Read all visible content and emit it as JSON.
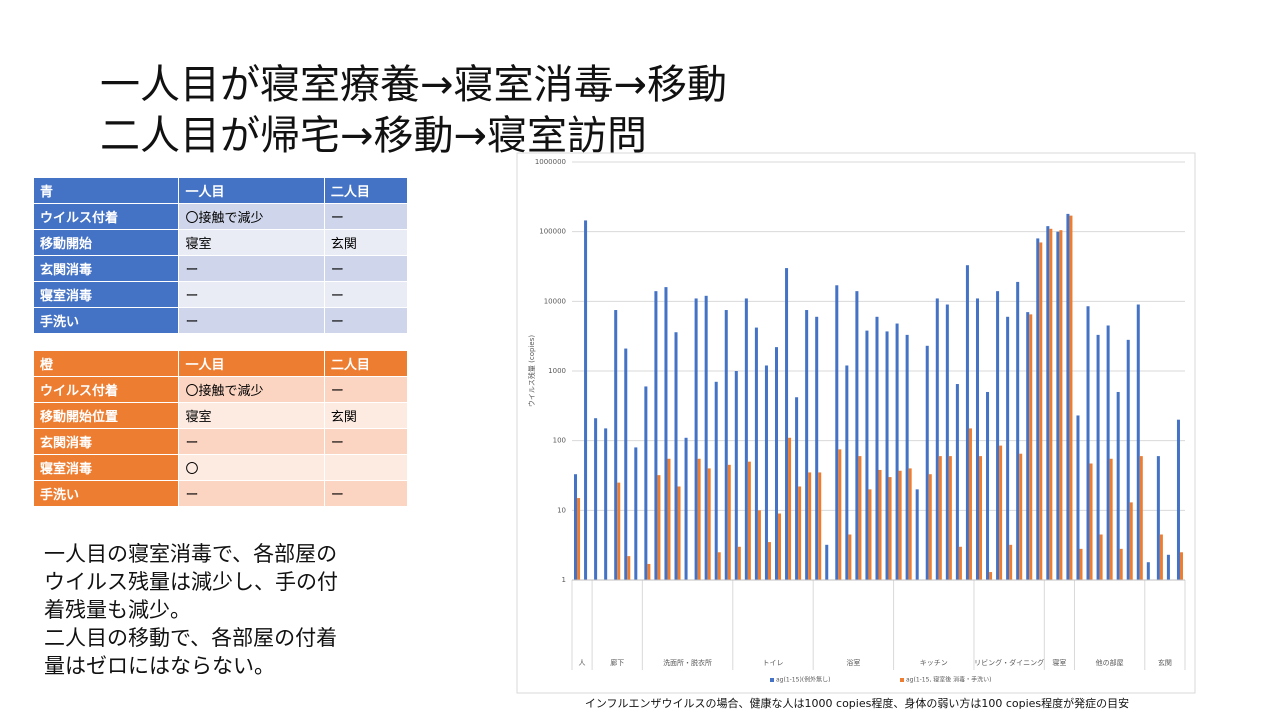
{
  "title_lines": [
    "一人目が寝室療養→寝室消毒→移動",
    "二人目が帰宅→移動→寝室訪問"
  ],
  "tables": [
    {
      "header": [
        "青",
        "一人目",
        "二人目"
      ],
      "rows": [
        [
          "ウイルス付着",
          "〇接触で減少",
          "ー"
        ],
        [
          "移動開始",
          "寝室",
          "玄関"
        ],
        [
          "玄関消毒",
          "ー",
          "ー"
        ],
        [
          "寝室消毒",
          "ー",
          "ー"
        ],
        [
          "手洗い",
          "ー",
          "ー"
        ]
      ]
    },
    {
      "header": [
        "橙",
        "一人目",
        "二人目"
      ],
      "rows": [
        [
          "ウイルス付着",
          "〇接触で減少",
          "ー"
        ],
        [
          "移動開始位置",
          "寝室",
          "玄関"
        ],
        [
          "玄関消毒",
          "ー",
          "ー"
        ],
        [
          "寝室消毒",
          "〇",
          null
        ],
        [
          "手洗い",
          "ー",
          "ー"
        ]
      ]
    }
  ],
  "note_lines": [
    "一人目の寝室消毒で、各部屋の",
    "ウイルス残量は減少し、手の付",
    "着残量も減少。",
    "二人目の移動で、各部屋の付着",
    "量はゼロにはならない。"
  ],
  "chart_data": {
    "type": "bar",
    "log_scale": true,
    "grid": true,
    "ylabel": "ウイルス残量 (copies)",
    "caption": "インフルエンザウイルスの場合、健康な人は1000 copies程度、身体の弱い方は100 copies程度が発症の目安",
    "ylim": [
      1,
      1000000
    ],
    "yticks": [
      1,
      10,
      100,
      1000,
      10000,
      100000,
      1000000
    ],
    "groups": [
      "人",
      "廊下",
      "洗面所・脱衣所",
      "トイレ",
      "浴室",
      "キッチン",
      "リビング・ダイニング",
      "寝室",
      "他の部屋",
      "玄関"
    ],
    "series": [
      {
        "name": "ag(1-15)(例外無し)",
        "color": "#4472c4",
        "values": [
          [
            33,
            145000
          ],
          [
            210,
            150,
            7500,
            2100,
            80
          ],
          [
            600,
            14000,
            16000,
            3600,
            110,
            11000,
            12000,
            700,
            7500
          ],
          [
            1000,
            11000,
            4200,
            1200,
            2200,
            30000,
            420,
            7500
          ],
          [
            6000,
            3.2,
            17000,
            1200,
            14000,
            3800,
            6000,
            3700
          ],
          [
            4800,
            3300,
            20,
            2300,
            11000,
            9000,
            650,
            33000
          ],
          [
            11000,
            500,
            14000,
            6000,
            19000,
            7000,
            80000
          ],
          [
            120000,
            100000,
            180000
          ],
          [
            230,
            8500,
            3300,
            4500,
            500,
            2800,
            9000
          ],
          [
            1.8,
            60,
            2.3,
            200
          ]
        ]
      },
      {
        "name": "ag(1-15, 寝室後 消毒・手洗い)",
        "color": "#ed7d31",
        "values": [
          [
            15,
            null
          ],
          [
            null,
            null,
            25,
            2.2,
            null
          ],
          [
            1.7,
            32,
            55,
            22,
            null,
            55,
            40,
            2.5,
            45
          ],
          [
            3,
            50,
            10,
            3.5,
            9,
            110,
            22,
            35
          ],
          [
            35,
            null,
            75,
            4.5,
            60,
            20,
            38,
            30
          ],
          [
            37,
            40,
            null,
            33,
            60,
            60,
            3,
            150
          ],
          [
            60,
            1.3,
            85,
            3.2,
            65,
            6500,
            70000
          ],
          [
            110000,
            105000,
            170000
          ],
          [
            2.8,
            47,
            4.5,
            55,
            2.8,
            13,
            60
          ],
          [
            null,
            4.5,
            null,
            2.5
          ]
        ]
      }
    ]
  }
}
